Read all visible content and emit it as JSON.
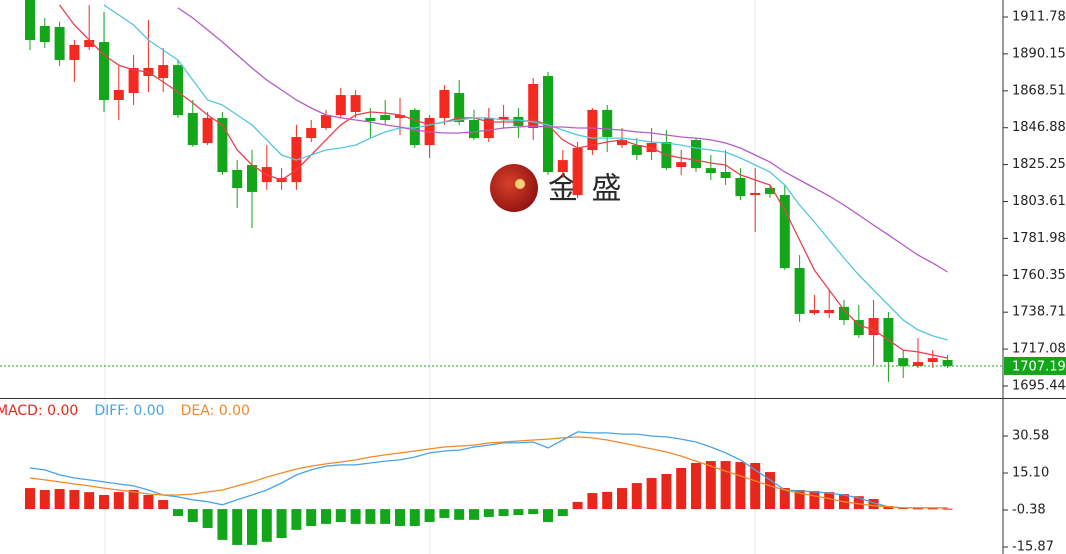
{
  "chart_data": [
    {
      "type": "candlestick",
      "categories": [
        null,
        null,
        null,
        null,
        null,
        null,
        null,
        null,
        null,
        null,
        null,
        null,
        null,
        null,
        null,
        null,
        null,
        null,
        null,
        null,
        null,
        null,
        null,
        null,
        null,
        null,
        null,
        null,
        null,
        null,
        null,
        null,
        null,
        null,
        null,
        null,
        null,
        null,
        null,
        null,
        null,
        null,
        null,
        null,
        null,
        null,
        null,
        null,
        null,
        null,
        null,
        null,
        null,
        null,
        null,
        null,
        null,
        null,
        null,
        null,
        null,
        null,
        null
      ],
      "open": [
        1924.7,
        1906.5,
        1905.9,
        1886.6,
        1894.2,
        1897.1,
        1863.1,
        1867.2,
        1877.2,
        1876.0,
        1883.6,
        1855.5,
        1837.9,
        1852.6,
        1822.1,
        1825.0,
        1815.0,
        1815.0,
        1815.0,
        1840.8,
        1846.7,
        1854.3,
        1856.1,
        1852.6,
        1854.3,
        1852.6,
        1857.3,
        1836.7,
        1852.6,
        1867.2,
        1851.4,
        1840.8,
        1851.4,
        1853.2,
        1846.7,
        1877.2,
        1820.9,
        1807.4,
        1833.8,
        1857.3,
        1836.7,
        1836.7,
        1832.6,
        1838.5,
        1823.8,
        1839.7,
        1823.2,
        1820.9,
        1817.4,
        1807.4,
        1811.5,
        1807.4,
        1764.6,
        1738.2,
        1738.2,
        1741.8,
        1734.1,
        1725.3,
        1735.3,
        1711.8,
        1707.2,
        1709.5,
        1710.7
      ],
      "high": [
        1927.6,
        1911.2,
        1908.9,
        1898.3,
        1918.8,
        1914.7,
        1883.6,
        1889.5,
        1910.0,
        1893.6,
        1886.6,
        1863.1,
        1856.1,
        1856.1,
        1827.9,
        1833.8,
        1836.7,
        1823.2,
        1848.5,
        1851.4,
        1857.3,
        1870.2,
        1869.0,
        1858.4,
        1863.1,
        1864.3,
        1858.4,
        1854.3,
        1871.9,
        1874.8,
        1857.3,
        1858.4,
        1860.2,
        1858.4,
        1876.0,
        1879.5,
        1833.8,
        1838.5,
        1858.4,
        1860.2,
        1846.7,
        1840.8,
        1846.7,
        1845.5,
        1833.8,
        1840.8,
        1830.9,
        1833.8,
        1823.2,
        1823.2,
        1813.3,
        1813.3,
        1772.2,
        1748.8,
        1751.7,
        1745.9,
        1742.9,
        1745.9,
        1738.8,
        1716.5,
        1723.6,
        1716.5,
        1713.6
      ],
      "low": [
        1892.4,
        1893.6,
        1883.1,
        1873.7,
        1892.4,
        1856.1,
        1851.4,
        1860.2,
        1867.8,
        1867.8,
        1852.6,
        1835.6,
        1836.7,
        1819.2,
        1799.8,
        1788.1,
        1810.4,
        1810.4,
        1810.4,
        1838.5,
        1845.5,
        1852.6,
        1852.6,
        1840.8,
        1848.5,
        1842.6,
        1835.0,
        1829.1,
        1848.5,
        1848.5,
        1839.7,
        1838.5,
        1846.7,
        1840.8,
        1839.7,
        1819.2,
        1817.4,
        1805.7,
        1830.9,
        1832.6,
        1835.0,
        1827.9,
        1827.9,
        1822.1,
        1819.2,
        1820.9,
        1816.2,
        1813.3,
        1804.5,
        1785.7,
        1805.7,
        1763.4,
        1733.0,
        1737.1,
        1735.3,
        1731.2,
        1723.6,
        1707.7,
        1697.8,
        1700.1,
        1706.0,
        1706.0,
        1706.0
      ],
      "close": [
        1898.3,
        1897.1,
        1886.6,
        1895.4,
        1898.3,
        1863.1,
        1869.0,
        1881.9,
        1881.9,
        1883.6,
        1854.3,
        1836.7,
        1852.6,
        1820.9,
        1811.5,
        1809.2,
        1823.8,
        1817.4,
        1841.4,
        1846.7,
        1854.3,
        1866.0,
        1866.0,
        1850.8,
        1851.4,
        1854.3,
        1836.7,
        1852.6,
        1869.0,
        1850.2,
        1840.8,
        1852.6,
        1853.2,
        1847.9,
        1872.5,
        1820.9,
        1827.9,
        1835.0,
        1857.3,
        1841.4,
        1839.7,
        1830.9,
        1837.9,
        1823.2,
        1826.7,
        1823.2,
        1820.3,
        1817.4,
        1806.8,
        1808.6,
        1808.0,
        1764.6,
        1737.7,
        1740.0,
        1740.0,
        1734.1,
        1725.3,
        1735.3,
        1709.5,
        1707.2,
        1709.5,
        1711.8,
        1707.19
      ],
      "up_color": "#f32a1f",
      "down_color": "#14a61a",
      "series": [
        {
          "color": "#e8404e",
          "values": [
            null,
            null,
            1918.8,
            1907.1,
            1898.3,
            1889.5,
            1883.6,
            1880.7,
            1879.5,
            1873.7,
            1867.8,
            1861.4,
            1854.3,
            1848.5,
            1833.8,
            1825.0,
            1819.2,
            1816.2,
            1822.1,
            1830.9,
            1839.7,
            1848.5,
            1854.3,
            1856.1,
            1855.5,
            1854.3,
            1851.4,
            1848.5,
            1850.2,
            1852.6,
            1852.6,
            1850.2,
            1850.2,
            1850.2,
            1851.4,
            1848.5,
            1839.7,
            1835.0,
            1836.7,
            1838.5,
            1839.7,
            1836.7,
            1835.0,
            1830.9,
            1829.1,
            1827.9,
            1826.2,
            1825.0,
            1819.2,
            1816.2,
            1813.3,
            1798.6,
            1781.0,
            1763.4,
            1751.7,
            1740.0,
            1731.2,
            1728.3,
            1722.4,
            1716.5,
            1715.4,
            1713.6,
            1711.8
          ]
        },
        {
          "color": "#55c6de",
          "values": [
            null,
            null,
            null,
            null,
            null,
            1918.8,
            1913.0,
            1907.1,
            1898.3,
            1892.4,
            1886.6,
            1874.8,
            1863.1,
            1860.2,
            1854.3,
            1848.5,
            1839.7,
            1830.9,
            1827.9,
            1830.9,
            1833.8,
            1835.0,
            1836.7,
            1840.8,
            1844.4,
            1846.7,
            1846.7,
            1848.5,
            1850.2,
            1851.4,
            1852.6,
            1852.6,
            1851.4,
            1851.4,
            1850.2,
            1848.5,
            1845.5,
            1842.6,
            1840.8,
            1840.8,
            1840.8,
            1839.7,
            1838.5,
            1837.9,
            1836.7,
            1835.0,
            1833.8,
            1832.6,
            1829.1,
            1825.0,
            1820.9,
            1813.3,
            1801.5,
            1791.6,
            1781.0,
            1770.5,
            1760.5,
            1751.7,
            1742.9,
            1734.1,
            1728.3,
            1724.8,
            1722.4
          ]
        },
        {
          "color": "#b65cc6",
          "values": [
            null,
            null,
            null,
            null,
            null,
            null,
            null,
            null,
            null,
            null,
            1917.1,
            1911.2,
            1904.2,
            1897.1,
            1889.5,
            1881.9,
            1874.8,
            1869.0,
            1863.1,
            1858.4,
            1854.3,
            1852.6,
            1851.4,
            1850.2,
            1848.5,
            1847.3,
            1845.5,
            1844.4,
            1843.8,
            1843.8,
            1844.4,
            1845.5,
            1846.7,
            1847.3,
            1847.9,
            1847.3,
            1847.3,
            1846.7,
            1846.7,
            1846.1,
            1845.5,
            1844.4,
            1843.8,
            1842.6,
            1841.4,
            1840.8,
            1839.7,
            1837.9,
            1835.0,
            1830.9,
            1826.7,
            1820.9,
            1816.2,
            1811.5,
            1806.8,
            1801.5,
            1795.7,
            1789.8,
            1784.0,
            1778.1,
            1772.2,
            1767.5,
            1762.3
          ]
        }
      ],
      "ylim": [
        1688.4,
        1921.75
      ],
      "yticks": [
        1911.78,
        1890.15,
        1868.51,
        1846.88,
        1825.25,
        1803.61,
        1781.98,
        1760.35,
        1738.71,
        1717.08,
        1695.44
      ],
      "last_price_color": "#14a61a"
    },
    {
      "type": "macd",
      "categories": [
        null,
        null,
        null,
        null,
        null,
        null,
        null,
        null,
        null,
        null,
        null,
        null,
        null,
        null,
        null,
        null,
        null,
        null,
        null,
        null,
        null,
        null,
        null,
        null,
        null,
        null,
        null,
        null,
        null,
        null,
        null,
        null,
        null,
        null,
        null,
        null,
        null,
        null,
        null,
        null,
        null,
        null,
        null,
        null,
        null,
        null,
        null,
        null,
        null,
        null,
        null,
        null,
        null,
        null,
        null,
        null,
        null,
        null,
        null,
        null,
        null,
        null,
        null
      ],
      "series": [
        {
          "name": "MACD: 0.00",
          "style": "bar",
          "color": "#e8261c",
          "down_color": "#14a61a",
          "values": [
            8.8,
            8.0,
            8.4,
            8.0,
            7.1,
            5.9,
            7.1,
            8.0,
            5.9,
            3.8,
            -2.9,
            -5.4,
            -7.9,
            -12.9,
            -15.0,
            -15.0,
            -13.7,
            -12.1,
            -8.7,
            -7.1,
            -6.2,
            -5.4,
            -6.2,
            -6.2,
            -6.2,
            -7.1,
            -7.1,
            -5.4,
            -3.7,
            -4.5,
            -4.5,
            -3.3,
            -2.9,
            -2.5,
            -2.1,
            -5.4,
            -2.9,
            3.0,
            6.7,
            7.2,
            8.8,
            10.9,
            13.0,
            14.7,
            17.2,
            19.3,
            20.1,
            20.1,
            19.7,
            19.3,
            15.5,
            8.8,
            8.0,
            7.6,
            7.1,
            6.3,
            5.4,
            4.2,
            1.3,
            0.4,
            0.3,
            0.3,
            0.2
          ]
        },
        {
          "name": "DIFF: 0.00",
          "style": "line",
          "color": "#4aa3e6",
          "values": [
            17.2,
            16.4,
            14.3,
            13.0,
            12.2,
            11.4,
            10.5,
            9.7,
            8.0,
            5.9,
            5.1,
            3.9,
            3.1,
            1.8,
            3.9,
            5.9,
            8.0,
            10.9,
            14.3,
            16.4,
            18.0,
            18.5,
            18.5,
            19.3,
            20.1,
            20.6,
            21.8,
            23.5,
            24.3,
            24.7,
            26.0,
            26.8,
            27.7,
            27.7,
            28.1,
            25.6,
            28.9,
            32.3,
            31.9,
            31.9,
            31.4,
            31.4,
            30.6,
            30.2,
            29.3,
            28.1,
            26.0,
            23.5,
            20.6,
            16.4,
            12.2,
            8.0,
            7.6,
            7.2,
            6.7,
            5.9,
            4.7,
            2.6,
            1.0,
            0.5,
            0.5,
            0.5,
            0.5
          ]
        },
        {
          "name": "DEA: 0.00",
          "style": "line",
          "color": "#f0892a",
          "values": [
            13.0,
            12.2,
            11.4,
            10.5,
            9.7,
            8.8,
            8.0,
            7.2,
            6.3,
            5.9,
            5.9,
            6.3,
            7.2,
            8.0,
            9.7,
            11.4,
            13.4,
            15.1,
            16.8,
            18.0,
            18.9,
            19.7,
            20.6,
            21.8,
            22.7,
            23.5,
            24.3,
            25.2,
            26.0,
            26.4,
            26.8,
            27.7,
            28.1,
            28.5,
            28.9,
            29.3,
            29.8,
            30.2,
            29.8,
            28.9,
            27.7,
            26.4,
            25.2,
            23.9,
            22.2,
            20.1,
            18.0,
            15.9,
            13.9,
            11.8,
            9.7,
            8.0,
            6.7,
            5.5,
            4.4,
            3.1,
            2.2,
            1.4,
            1.0,
            0.5,
            0.5,
            0.5,
            0.5
          ]
        }
      ],
      "ylim": [
        -18.8,
        46.5
      ],
      "yticks": [
        30.58,
        {
          "value": 15.1,
          "label": "15.10"
        },
        -0.38,
        -15.87
      ]
    }
  ],
  "watermark": "金 盛"
}
